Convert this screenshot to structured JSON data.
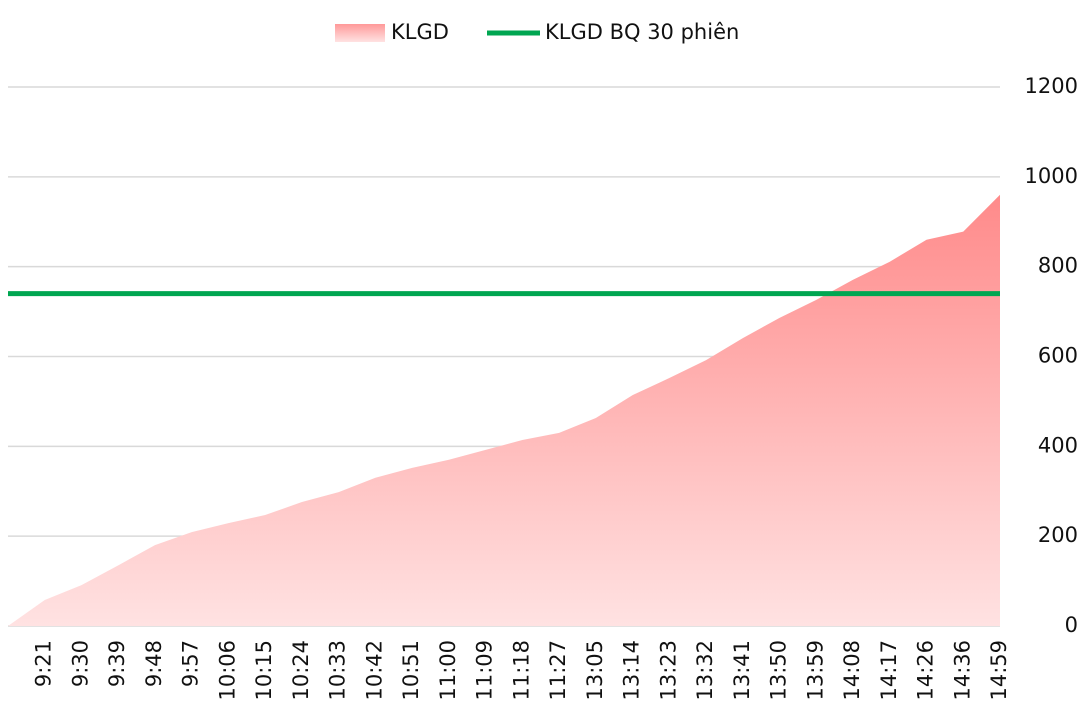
{
  "chart_data": {
    "type": "area",
    "categories": [
      null,
      "9:21",
      "9:30",
      "9:39",
      "9:48",
      "9:57",
      "10:06",
      "10:15",
      "10:24",
      "10:33",
      "10:42",
      "10:51",
      "11:00",
      "11:09",
      "11:18",
      "11:27",
      "13:05",
      "13:14",
      "13:23",
      "13:32",
      "13:41",
      "13:50",
      "13:59",
      "14:08",
      "14:17",
      "14:26",
      "14:36",
      "14:59"
    ],
    "series": [
      {
        "name": "KLGD",
        "color": "#ff9090",
        "type": "area",
        "values": [
          0,
          58,
          91,
          135,
          180,
          209,
          229,
          247,
          276,
          298,
          330,
          352,
          370,
          392,
          414,
          430,
          463,
          514,
          552,
          592,
          641,
          686,
          726,
          771,
          811,
          860,
          878,
          960
        ]
      },
      {
        "name": "KLGD BQ 30 phiên",
        "color": "#00a651",
        "type": "line",
        "values": [
          740,
          740,
          740,
          740,
          740,
          740,
          740,
          740,
          740,
          740,
          740,
          740,
          740,
          740,
          740,
          740,
          740,
          740,
          740,
          740,
          740,
          740,
          740,
          740,
          740,
          740,
          740,
          740
        ]
      }
    ],
    "ylim": [
      0,
      1200
    ],
    "yticks": [
      0,
      200,
      400,
      600,
      800,
      1000,
      1200
    ],
    "grid": true,
    "legend": "top"
  }
}
